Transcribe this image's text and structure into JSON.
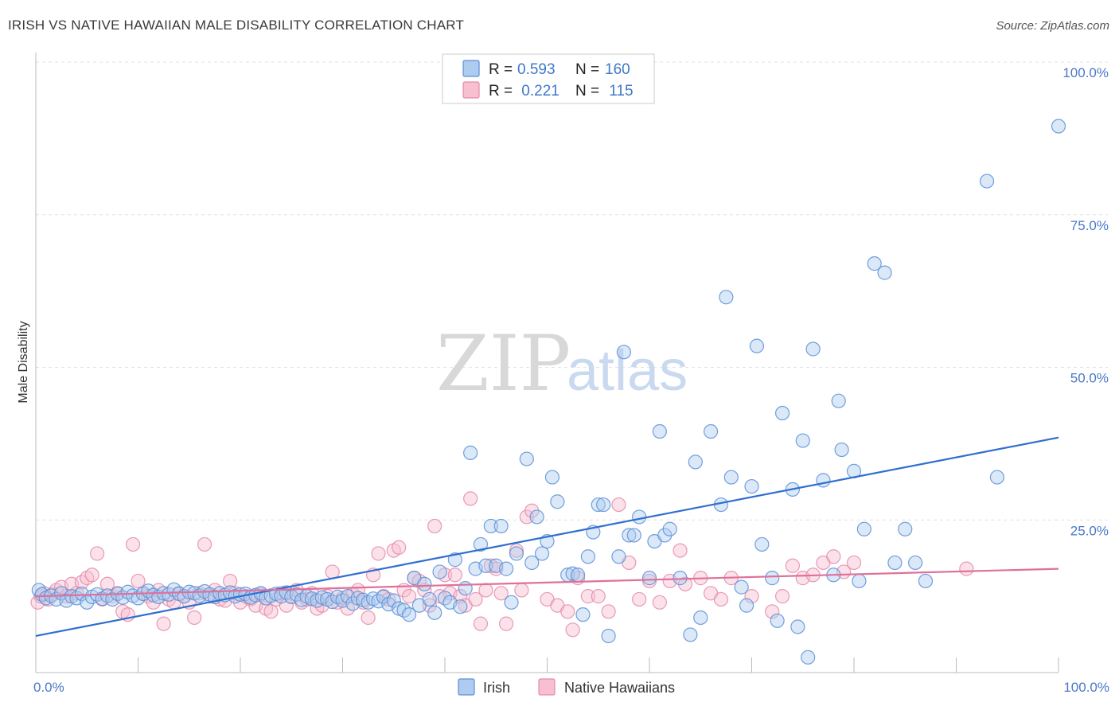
{
  "header": {
    "title": "IRISH VS NATIVE HAWAIIAN MALE DISABILITY CORRELATION CHART",
    "source": "Source: ZipAtlas.com"
  },
  "watermark": {
    "zip": "ZIP",
    "atlas": "atlas"
  },
  "legend": {
    "r_label": "R =",
    "n_label": "N =",
    "rows": [
      {
        "r": "0.593",
        "n": "160"
      },
      {
        "r": " 0.221",
        "n": " 115"
      }
    ]
  },
  "colors": {
    "irish_fill": "#aecbf0",
    "irish_stroke": "#5b8fd6",
    "irish_line": "#2f6fcf",
    "hawaiian_fill": "#f7bfd0",
    "hawaiian_stroke": "#e58aa8",
    "hawaiian_line": "#e0709a"
  },
  "chart_data": {
    "type": "scatter",
    "ylabel": "Male Disability",
    "xlim": [
      0,
      100
    ],
    "ylim": [
      0,
      100
    ],
    "x_tick_labels": [
      "0.0%",
      "100.0%"
    ],
    "y_ticks": [
      25,
      50,
      75,
      100
    ],
    "y_tick_labels": [
      "25.0%",
      "50.0%",
      "75.0%",
      "100.0%"
    ],
    "grid": "dashed-horizontal",
    "series": [
      {
        "name": "Irish",
        "trend": {
          "x": [
            0,
            100
          ],
          "y": [
            6,
            38.5
          ]
        },
        "points": [
          [
            0.3,
            13.5
          ],
          [
            0.6,
            12.8
          ],
          [
            1,
            12.2
          ],
          [
            1.5,
            12.6
          ],
          [
            2,
            12
          ],
          [
            2.5,
            13
          ],
          [
            3,
            11.8
          ],
          [
            3.5,
            12.5
          ],
          [
            4,
            12.2
          ],
          [
            4.5,
            12.9
          ],
          [
            5,
            11.5
          ],
          [
            5.5,
            12.4
          ],
          [
            6,
            12.8
          ],
          [
            6.5,
            12.1
          ],
          [
            7,
            12.6
          ],
          [
            7.5,
            12
          ],
          [
            8,
            12.9
          ],
          [
            8.5,
            12.3
          ],
          [
            9,
            13.2
          ],
          [
            9.5,
            12.6
          ],
          [
            10,
            12.2
          ],
          [
            10.5,
            12.9
          ],
          [
            11,
            13.4
          ],
          [
            11.5,
            12.7
          ],
          [
            12,
            12.4
          ],
          [
            12.5,
            13
          ],
          [
            13,
            12.8
          ],
          [
            13.5,
            13.6
          ],
          [
            14,
            12.9
          ],
          [
            14.5,
            12.5
          ],
          [
            15,
            13.2
          ],
          [
            15.5,
            13
          ],
          [
            16,
            12.6
          ],
          [
            16.5,
            13.3
          ],
          [
            17,
            12.8
          ],
          [
            17.5,
            12.4
          ],
          [
            18,
            13
          ],
          [
            18.5,
            12.7
          ],
          [
            19,
            13.1
          ],
          [
            19.5,
            12.5
          ],
          [
            20,
            12.8
          ],
          [
            20.5,
            12.9
          ],
          [
            21,
            12.3
          ],
          [
            21.5,
            12.7
          ],
          [
            22,
            13
          ],
          [
            22.5,
            12.2
          ],
          [
            23,
            12.6
          ],
          [
            23.5,
            12.9
          ],
          [
            24,
            12.5
          ],
          [
            24.5,
            13.1
          ],
          [
            25,
            12.4
          ],
          [
            25.5,
            12.8
          ],
          [
            26,
            11.9
          ],
          [
            26.5,
            12.5
          ],
          [
            27,
            12.1
          ],
          [
            27.5,
            11.8
          ],
          [
            28,
            12.3
          ],
          [
            28.5,
            12
          ],
          [
            29,
            11.6
          ],
          [
            29.5,
            12.4
          ],
          [
            30,
            11.8
          ],
          [
            30.5,
            12.5
          ],
          [
            31,
            11.3
          ],
          [
            31.5,
            12.2
          ],
          [
            32,
            11.9
          ],
          [
            32.5,
            11.5
          ],
          [
            33,
            12.1
          ],
          [
            33.5,
            11.7
          ],
          [
            34,
            12.4
          ],
          [
            34.5,
            11.2
          ],
          [
            35,
            11.8
          ],
          [
            35.5,
            10.5
          ],
          [
            36,
            10.2
          ],
          [
            36.5,
            9.5
          ],
          [
            37,
            15.5
          ],
          [
            37.5,
            11
          ],
          [
            38,
            14.5
          ],
          [
            38.5,
            12
          ],
          [
            39,
            9.8
          ],
          [
            39.5,
            16.5
          ],
          [
            40,
            12.2
          ],
          [
            40.5,
            11.5
          ],
          [
            41,
            18.5
          ],
          [
            41.5,
            10.8
          ],
          [
            42,
            13.8
          ],
          [
            42.5,
            36
          ],
          [
            43,
            17
          ],
          [
            43.5,
            21
          ],
          [
            44,
            17.5
          ],
          [
            44.5,
            24
          ],
          [
            45,
            17.5
          ],
          [
            45.5,
            24
          ],
          [
            46,
            17
          ],
          [
            46.5,
            11.5
          ],
          [
            47,
            19.5
          ],
          [
            48,
            35
          ],
          [
            48.5,
            18
          ],
          [
            49,
            25.5
          ],
          [
            49.5,
            19.5
          ],
          [
            50,
            21.5
          ],
          [
            50.5,
            32
          ],
          [
            51,
            28
          ],
          [
            52,
            16
          ],
          [
            52.5,
            16.2
          ],
          [
            53,
            16
          ],
          [
            53.5,
            9.5
          ],
          [
            54,
            19
          ],
          [
            54.5,
            23
          ],
          [
            55,
            27.5
          ],
          [
            55.5,
            27.5
          ],
          [
            56,
            6
          ],
          [
            57,
            19
          ],
          [
            57.5,
            52.5
          ],
          [
            58,
            22.5
          ],
          [
            58.5,
            22.5
          ],
          [
            59,
            25.5
          ],
          [
            60,
            15.5
          ],
          [
            60.5,
            21.5
          ],
          [
            61,
            39.5
          ],
          [
            61.5,
            22.5
          ],
          [
            62,
            23.5
          ],
          [
            63,
            15.5
          ],
          [
            64,
            6.2
          ],
          [
            64.5,
            34.5
          ],
          [
            65,
            9
          ],
          [
            66,
            39.5
          ],
          [
            67,
            27.5
          ],
          [
            67.5,
            61.5
          ],
          [
            68,
            32
          ],
          [
            69,
            14
          ],
          [
            69.5,
            11
          ],
          [
            70,
            30.5
          ],
          [
            70.5,
            53.5
          ],
          [
            71,
            21
          ],
          [
            72,
            15.5
          ],
          [
            72.5,
            8.5
          ],
          [
            73,
            42.5
          ],
          [
            74,
            30
          ],
          [
            74.5,
            7.5
          ],
          [
            75,
            38
          ],
          [
            75.5,
            2.5
          ],
          [
            76,
            53
          ],
          [
            77,
            31.5
          ],
          [
            78,
            16
          ],
          [
            78.5,
            44.5
          ],
          [
            78.8,
            36.5
          ],
          [
            80,
            33
          ],
          [
            80.5,
            15
          ],
          [
            81,
            23.5
          ],
          [
            82,
            67
          ],
          [
            83,
            65.5
          ],
          [
            84,
            18
          ],
          [
            85,
            23.5
          ],
          [
            86,
            18
          ],
          [
            87,
            15
          ],
          [
            93,
            80.5
          ],
          [
            94,
            32
          ],
          [
            100,
            89.5
          ]
        ]
      },
      {
        "name": "Native Hawaiians",
        "trend": {
          "x": [
            0,
            100
          ],
          "y": [
            12.5,
            17
          ]
        },
        "points": [
          [
            0.2,
            11.5
          ],
          [
            0.5,
            12.5
          ],
          [
            0.8,
            13
          ],
          [
            1.2,
            12
          ],
          [
            1.6,
            12.8
          ],
          [
            2,
            13.5
          ],
          [
            2.5,
            14
          ],
          [
            3,
            12.5
          ],
          [
            3.5,
            14.5
          ],
          [
            4,
            13
          ],
          [
            4.5,
            14.8
          ],
          [
            5,
            15.5
          ],
          [
            5.5,
            16
          ],
          [
            6,
            19.5
          ],
          [
            6.5,
            12
          ],
          [
            7,
            14.5
          ],
          [
            7.5,
            12.5
          ],
          [
            8,
            13
          ],
          [
            8.5,
            10
          ],
          [
            9,
            9.5
          ],
          [
            9.5,
            21
          ],
          [
            10,
            15
          ],
          [
            10.5,
            13
          ],
          [
            11,
            12.5
          ],
          [
            11.5,
            11.5
          ],
          [
            12,
            13.5
          ],
          [
            12.5,
            8
          ],
          [
            13,
            12
          ],
          [
            13.5,
            11.5
          ],
          [
            14,
            13
          ],
          [
            14.5,
            12.5
          ],
          [
            15,
            11.5
          ],
          [
            15.5,
            9
          ],
          [
            16,
            13
          ],
          [
            16.5,
            21
          ],
          [
            17,
            12.5
          ],
          [
            17.5,
            13.5
          ],
          [
            18,
            12
          ],
          [
            18.5,
            11.8
          ],
          [
            19,
            15
          ],
          [
            19.5,
            13
          ],
          [
            20,
            11.5
          ],
          [
            20.5,
            12.5
          ],
          [
            21,
            12
          ],
          [
            21.5,
            11
          ],
          [
            22,
            12.8
          ],
          [
            22.5,
            10.5
          ],
          [
            23,
            10
          ],
          [
            23.5,
            12
          ],
          [
            24,
            13
          ],
          [
            24.5,
            11
          ],
          [
            25,
            12.5
          ],
          [
            25.5,
            13.5
          ],
          [
            26,
            11.5
          ],
          [
            26.5,
            12
          ],
          [
            27,
            13
          ],
          [
            27.5,
            10.5
          ],
          [
            28,
            11
          ],
          [
            28.5,
            12.5
          ],
          [
            29,
            16.5
          ],
          [
            29.5,
            11.5
          ],
          [
            30,
            12.2
          ],
          [
            30.5,
            10.5
          ],
          [
            31,
            12.8
          ],
          [
            31.5,
            13.5
          ],
          [
            32,
            11.5
          ],
          [
            32.5,
            9
          ],
          [
            33,
            16
          ],
          [
            33.5,
            19.5
          ],
          [
            34,
            12.5
          ],
          [
            34.5,
            12
          ],
          [
            35,
            20
          ],
          [
            35.5,
            20.5
          ],
          [
            36,
            13.5
          ],
          [
            36.5,
            12.5
          ],
          [
            37,
            15.5
          ],
          [
            37.5,
            15
          ],
          [
            38,
            13.5
          ],
          [
            38.5,
            11
          ],
          [
            39,
            24
          ],
          [
            39.5,
            12.5
          ],
          [
            40,
            16
          ],
          [
            40.5,
            13
          ],
          [
            41,
            16
          ],
          [
            41.5,
            12.5
          ],
          [
            42,
            11
          ],
          [
            42.5,
            28.5
          ],
          [
            43,
            12
          ],
          [
            43.5,
            8
          ],
          [
            44,
            13.5
          ],
          [
            44.5,
            17.5
          ],
          [
            45,
            17
          ],
          [
            45.5,
            13
          ],
          [
            46,
            8
          ],
          [
            47,
            20
          ],
          [
            47.5,
            13.5
          ],
          [
            48,
            25.5
          ],
          [
            48.5,
            26.5
          ],
          [
            50,
            12
          ],
          [
            51,
            11
          ],
          [
            52,
            10
          ],
          [
            52.5,
            7
          ],
          [
            53,
            15.5
          ],
          [
            54,
            12.5
          ],
          [
            55,
            12.5
          ],
          [
            56,
            10
          ],
          [
            57,
            27.5
          ],
          [
            58,
            18
          ],
          [
            59,
            12
          ],
          [
            60,
            15
          ],
          [
            61,
            11.5
          ],
          [
            62,
            15
          ],
          [
            63,
            20
          ],
          [
            63.5,
            14.5
          ],
          [
            65,
            15.5
          ],
          [
            66,
            13
          ],
          [
            67,
            12
          ],
          [
            68,
            15.5
          ],
          [
            70,
            12.5
          ],
          [
            72,
            10
          ],
          [
            73,
            12.5
          ],
          [
            74,
            17.5
          ],
          [
            75,
            15.5
          ],
          [
            76,
            16
          ],
          [
            77,
            18
          ],
          [
            78,
            19
          ],
          [
            79,
            16.5
          ],
          [
            80,
            18
          ],
          [
            91,
            17
          ]
        ]
      }
    ]
  },
  "bottom_legend": [
    {
      "label": "Irish"
    },
    {
      "label": "Native Hawaiians"
    }
  ]
}
